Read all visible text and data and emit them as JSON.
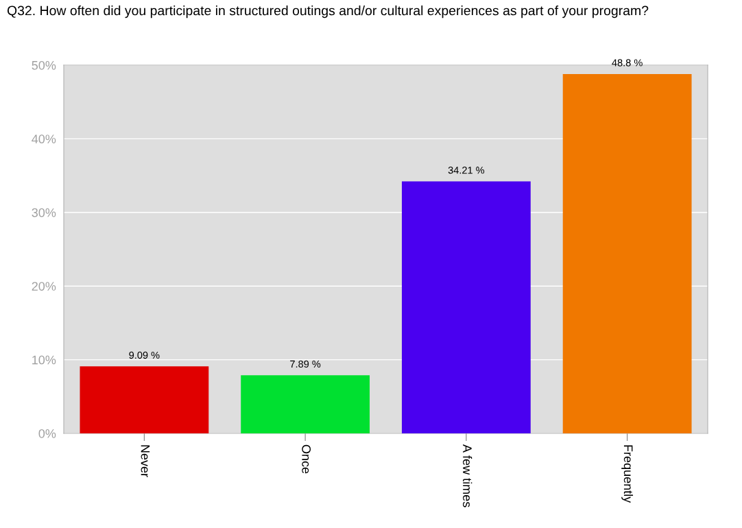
{
  "chart_data": {
    "type": "bar",
    "title": "Q32. How often did you participate in structured outings and/or cultural experiences as part of your program?",
    "categories": [
      "Never",
      "Once",
      "A few times",
      "Frequently"
    ],
    "values": [
      9.09,
      7.89,
      34.21,
      48.8
    ],
    "value_labels": [
      "9.09 %",
      "7.89 %",
      "34.21 %",
      "48.8 %"
    ],
    "colors": [
      "#e00000",
      "#00e030",
      "#4a00f0",
      "#f07800"
    ],
    "ylim": [
      0,
      50
    ],
    "yticks": [
      {
        "value": 0,
        "label": "0%"
      },
      {
        "value": 10,
        "label": "10%"
      },
      {
        "value": 20,
        "label": "20%"
      },
      {
        "value": 30,
        "label": "30%"
      },
      {
        "value": 40,
        "label": "40%"
      },
      {
        "value": 50,
        "label": "50%"
      }
    ],
    "grid": "y",
    "legend": false
  }
}
